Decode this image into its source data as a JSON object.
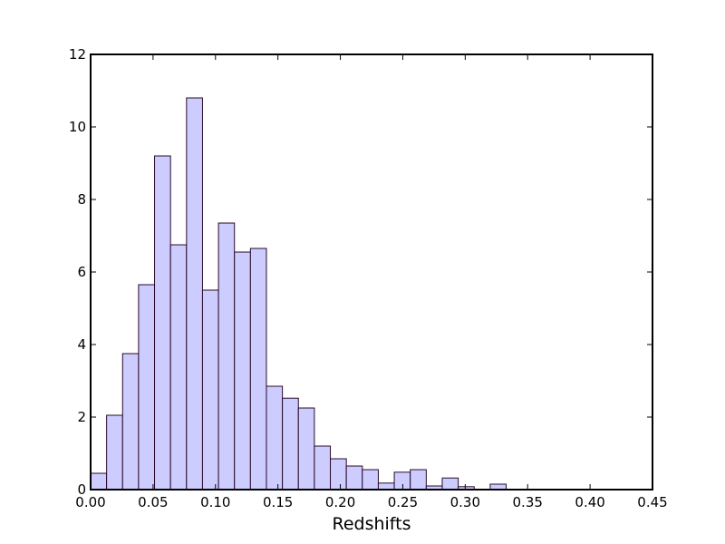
{
  "chart_data": {
    "type": "bar",
    "subtype": "histogram",
    "xlabel": "Redshifts",
    "ylabel": "",
    "title": "",
    "xlim": [
      0.0,
      0.45
    ],
    "ylim": [
      0,
      12
    ],
    "x_ticks": [
      "0.00",
      "0.05",
      "0.10",
      "0.15",
      "0.20",
      "0.25",
      "0.30",
      "0.35",
      "0.40",
      "0.45"
    ],
    "y_ticks": [
      "0",
      "2",
      "4",
      "6",
      "8",
      "10",
      "12"
    ],
    "bin_width": 0.0128,
    "bin_starts": [
      0.0,
      0.0128,
      0.0256,
      0.0384,
      0.0512,
      0.064,
      0.0768,
      0.0896,
      0.1024,
      0.1152,
      0.128,
      0.1408,
      0.1536,
      0.1664,
      0.1792,
      0.192,
      0.2048,
      0.2176,
      0.2304,
      0.2432,
      0.256,
      0.2688,
      0.2816,
      0.2944,
      0.3072,
      0.32
    ],
    "values": [
      0.45,
      2.05,
      3.75,
      5.65,
      9.2,
      6.75,
      10.8,
      5.5,
      7.35,
      6.55,
      6.65,
      2.85,
      2.52,
      2.25,
      1.2,
      0.85,
      0.65,
      0.55,
      0.18,
      0.48,
      0.55,
      0.1,
      0.32,
      0.08,
      0.0,
      0.15
    ],
    "bar_color": "#ccccff",
    "edge_color": "#2a0a2a",
    "grid": false,
    "legend": "none"
  }
}
